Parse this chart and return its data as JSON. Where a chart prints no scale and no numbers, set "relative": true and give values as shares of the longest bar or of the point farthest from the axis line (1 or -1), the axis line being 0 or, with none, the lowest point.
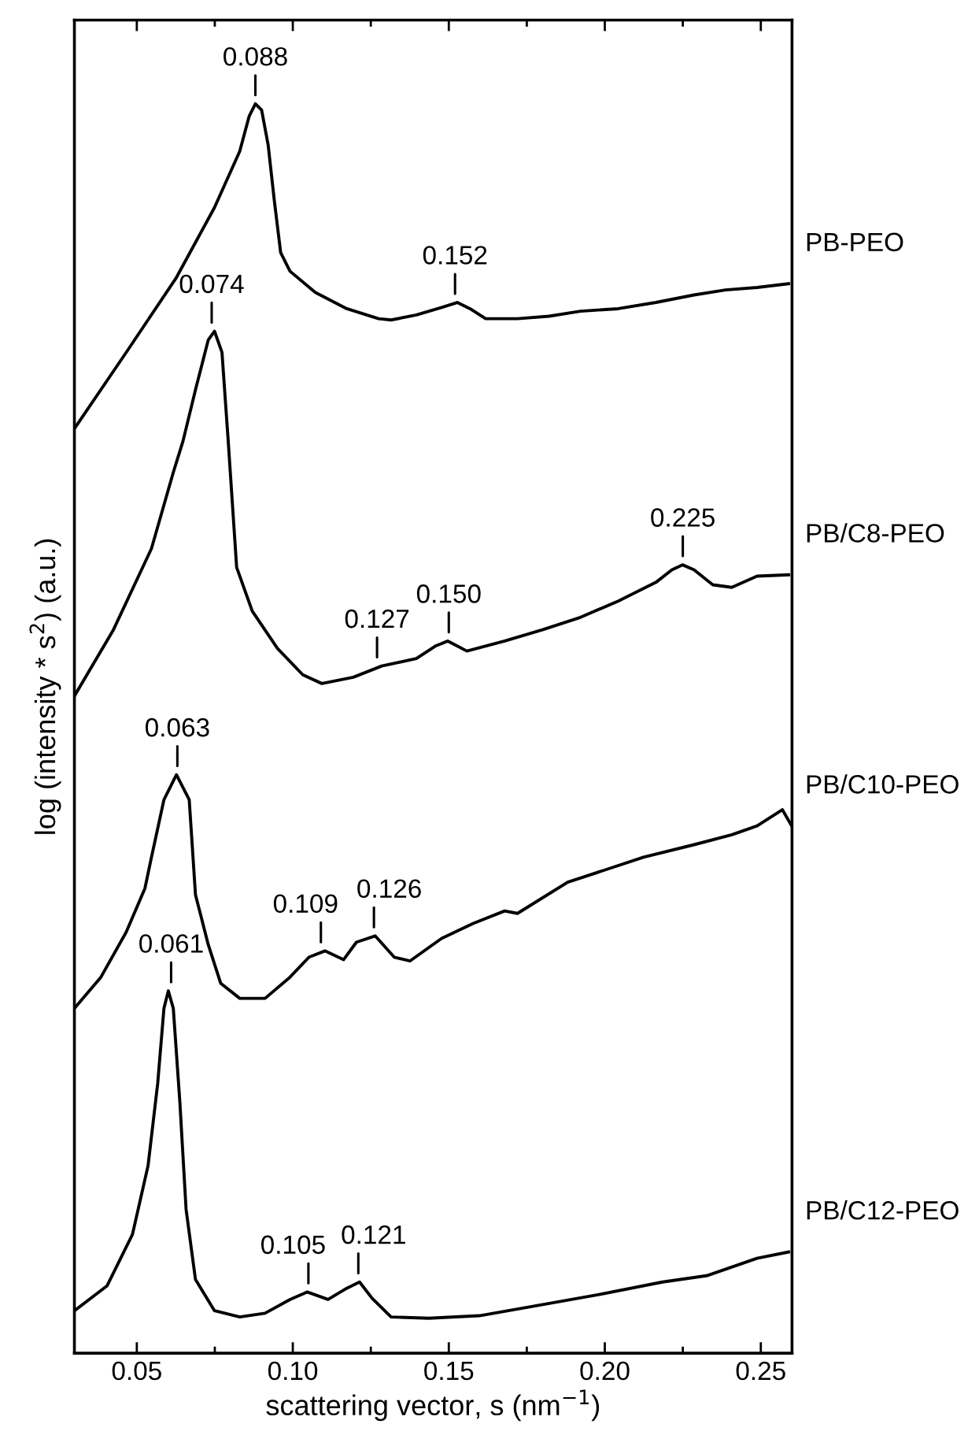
{
  "chart_data": {
    "type": "line",
    "relative": true,
    "xlabel": "scattering vector, s (nm$^{−1}$)",
    "ylabel": "log (intensity * s$^{2}$) (a.u.)",
    "xlim": [
      0.03,
      0.26
    ],
    "xticks": [
      {
        "value": 0.05,
        "label": "0.05"
      },
      {
        "value": 0.075,
        "label": null
      },
      {
        "value": 0.1,
        "label": "0.10"
      },
      {
        "value": 0.125,
        "label": null
      },
      {
        "value": 0.15,
        "label": "0.15"
      },
      {
        "value": 0.175,
        "label": null
      },
      {
        "value": 0.2,
        "label": "0.20"
      },
      {
        "value": 0.225,
        "label": null
      },
      {
        "value": 0.25,
        "label": "0.25"
      }
    ],
    "grid": false,
    "legend": false,
    "marker": "none",
    "line_style": "solid",
    "series": [
      {
        "name": "PB-PEO",
        "color": "#000000",
        "x": [
          0.03,
          0.0466,
          0.0627,
          0.0749,
          0.083,
          0.086,
          0.088,
          0.09,
          0.0921,
          0.0941,
          0.0961,
          0.0991,
          0.1072,
          0.1173,
          0.1275,
          0.1315,
          0.1396,
          0.1477,
          0.1527,
          0.1568,
          0.1618,
          0.172,
          0.1821,
          0.1922,
          0.2043,
          0.2164,
          0.2286,
          0.2387,
          0.2488,
          0.2589
        ],
        "values": [
          0.74,
          0.801,
          0.861,
          0.917,
          0.962,
          0.99,
          1.0,
          0.995,
          0.967,
          0.922,
          0.881,
          0.866,
          0.849,
          0.836,
          0.828,
          0.827,
          0.831,
          0.837,
          0.841,
          0.836,
          0.828,
          0.828,
          0.83,
          0.834,
          0.836,
          0.841,
          0.847,
          0.851,
          0.853,
          0.856
        ]
      },
      {
        "name": "PB/C8-PEO",
        "color": "#000000",
        "x": [
          0.03,
          0.0425,
          0.0547,
          0.0617,
          0.0648,
          0.0688,
          0.0729,
          0.0749,
          0.0773,
          0.0793,
          0.082,
          0.087,
          0.0951,
          0.1032,
          0.1093,
          0.1194,
          0.1285,
          0.1396,
          0.1457,
          0.1497,
          0.1558,
          0.1679,
          0.18,
          0.1922,
          0.2043,
          0.2164,
          0.2215,
          0.2249,
          0.2286,
          0.2346,
          0.2407,
          0.2488,
          0.2589
        ],
        "values": [
          0.526,
          0.579,
          0.644,
          0.705,
          0.73,
          0.771,
          0.811,
          0.818,
          0.801,
          0.73,
          0.629,
          0.594,
          0.564,
          0.543,
          0.536,
          0.541,
          0.55,
          0.556,
          0.566,
          0.57,
          0.562,
          0.57,
          0.579,
          0.589,
          0.602,
          0.617,
          0.627,
          0.631,
          0.627,
          0.615,
          0.613,
          0.622,
          0.623
        ]
      },
      {
        "name": "PB/C10-PEO",
        "color": "#000000",
        "x": [
          0.03,
          0.0385,
          0.0466,
          0.0526,
          0.0547,
          0.0587,
          0.0627,
          0.0668,
          0.0688,
          0.0729,
          0.0769,
          0.083,
          0.0911,
          0.0991,
          0.1052,
          0.1103,
          0.1163,
          0.1204,
          0.1264,
          0.1325,
          0.1376,
          0.1477,
          0.1578,
          0.1679,
          0.172,
          0.1881,
          0.2003,
          0.2124,
          0.2286,
          0.2407,
          0.2488,
          0.2569,
          0.2599
        ],
        "values": [
          0.276,
          0.301,
          0.337,
          0.372,
          0.397,
          0.443,
          0.463,
          0.443,
          0.367,
          0.327,
          0.296,
          0.284,
          0.284,
          0.301,
          0.317,
          0.322,
          0.315,
          0.329,
          0.334,
          0.317,
          0.314,
          0.332,
          0.344,
          0.354,
          0.352,
          0.377,
          0.387,
          0.397,
          0.407,
          0.415,
          0.422,
          0.435,
          0.422
        ]
      },
      {
        "name": "PB/C12-PEO",
        "color": "#000000",
        "x": [
          0.03,
          0.0405,
          0.0486,
          0.0536,
          0.0567,
          0.0587,
          0.0601,
          0.0617,
          0.0638,
          0.0658,
          0.0688,
          0.0749,
          0.083,
          0.0911,
          0.0991,
          0.1046,
          0.1113,
          0.1173,
          0.1214,
          0.1254,
          0.1315,
          0.1436,
          0.1598,
          0.178,
          0.1982,
          0.2185,
          0.2326,
          0.2488,
          0.2589
        ],
        "values": [
          0.034,
          0.054,
          0.095,
          0.15,
          0.216,
          0.276,
          0.29,
          0.276,
          0.201,
          0.115,
          0.059,
          0.034,
          0.029,
          0.032,
          0.043,
          0.049,
          0.043,
          0.052,
          0.057,
          0.044,
          0.029,
          0.028,
          0.03,
          0.038,
          0.047,
          0.057,
          0.062,
          0.076,
          0.081
        ]
      }
    ],
    "annotations": [
      {
        "text": "0.088",
        "x": 0.088,
        "y": 1.0
      },
      {
        "text": "0.152",
        "x": 0.152,
        "y": 0.841
      },
      {
        "text": "0.074",
        "x": 0.074,
        "y": 0.818
      },
      {
        "text": "0.127",
        "x": 0.127,
        "y": 0.55
      },
      {
        "text": "0.150",
        "x": 0.15,
        "y": 0.57
      },
      {
        "text": "0.225",
        "x": 0.225,
        "y": 0.631
      },
      {
        "text": "0.063",
        "x": 0.063,
        "y": 0.463
      },
      {
        "text": "0.109",
        "x": 0.109,
        "y": 0.322
      },
      {
        "text": "0.126",
        "x": 0.126,
        "y": 0.334
      },
      {
        "text": "0.061",
        "x": 0.061,
        "y": 0.29
      },
      {
        "text": "0.105",
        "x": 0.105,
        "y": 0.049
      },
      {
        "text": "0.121",
        "x": 0.121,
        "y": 0.057
      }
    ]
  }
}
